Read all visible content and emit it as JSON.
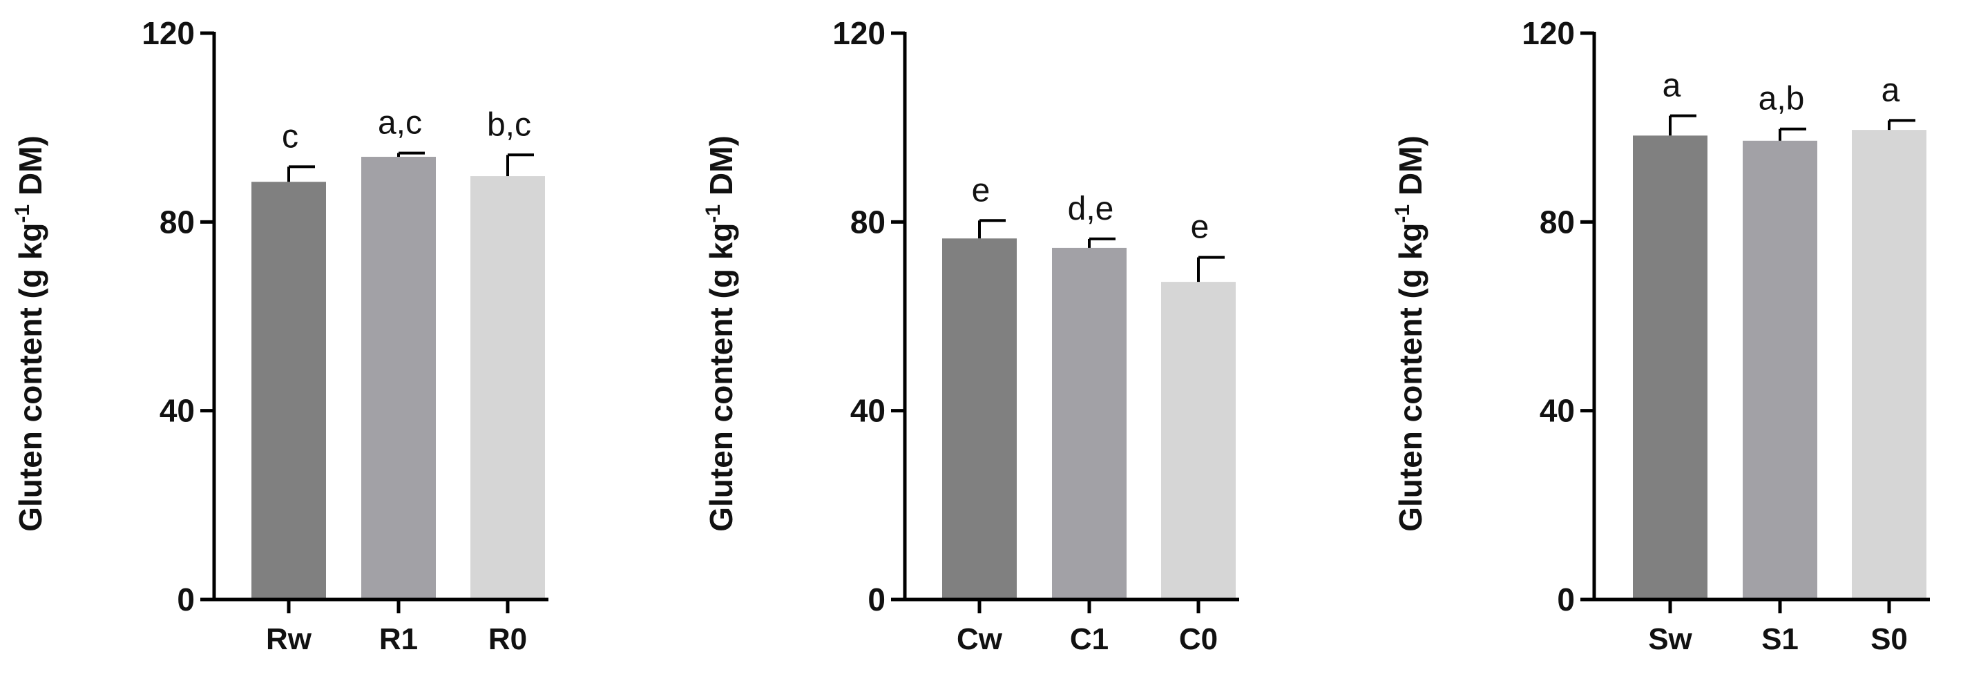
{
  "colors": {
    "axis": "#000000",
    "bar_1": "#808080",
    "bar_2": "#a2a1a6",
    "bar_3": "#d6d6d6",
    "error": "#000000"
  },
  "chart_data": [
    {
      "type": "bar",
      "ylabel": {
        "pre": "Gluten content (g kg",
        "sup": "-1",
        "post": " DM)"
      },
      "ylim": [
        0,
        120
      ],
      "yticks": [
        "0",
        "40",
        "80",
        "120"
      ],
      "categories": [
        "Rw",
        "R1",
        "R0"
      ],
      "values": [
        88.5,
        93.8,
        89.7
      ],
      "errors": [
        3.2,
        0.8,
        4.5
      ],
      "significance": [
        "c",
        "a,c",
        "b,c"
      ]
    },
    {
      "type": "bar",
      "ylabel": {
        "pre": "Gluten content (g kg",
        "sup": "-1",
        "post": " DM)"
      },
      "ylim": [
        0,
        120
      ],
      "yticks": [
        "0",
        "40",
        "80",
        "120"
      ],
      "categories": [
        "Cw",
        "C1",
        "C0"
      ],
      "values": [
        76.5,
        74.5,
        67.3
      ],
      "errors": [
        3.8,
        1.9,
        5.2
      ],
      "significance": [
        "e",
        "d,e",
        "e"
      ]
    },
    {
      "type": "bar",
      "ylabel": {
        "pre": "Gluten content (g kg",
        "sup": "-1",
        "post": " DM)"
      },
      "ylim": [
        0,
        120
      ],
      "yticks": [
        "0",
        "40",
        "80",
        "120"
      ],
      "categories": [
        "Sw",
        "S1",
        "S0"
      ],
      "values": [
        98.3,
        97.2,
        99.5
      ],
      "errors": [
        4.2,
        2.5,
        2.0
      ],
      "significance": [
        "a",
        "a,b",
        "a"
      ]
    }
  ]
}
